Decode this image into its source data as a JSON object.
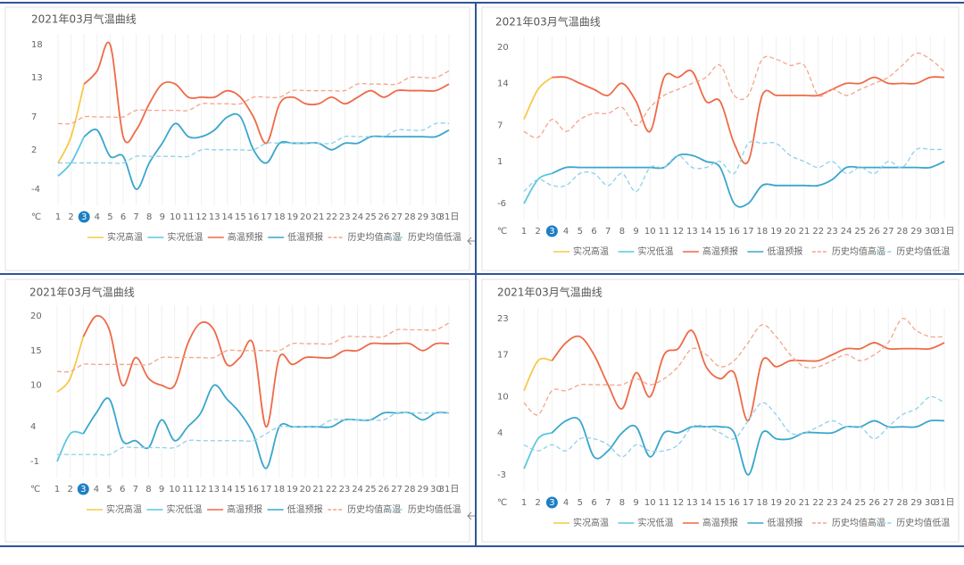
{
  "chart_data": [
    {
      "type": "line",
      "title": "2021年03月气温曲线",
      "y_unit": "℃",
      "highlight_index": 2,
      "grid": true,
      "categories": [
        "1",
        "2",
        "3",
        "4",
        "5",
        "6",
        "7",
        "8",
        "9",
        "10",
        "11",
        "12",
        "13",
        "14",
        "15",
        "16",
        "17",
        "18",
        "19",
        "20",
        "21",
        "22",
        "23",
        "24",
        "25",
        "26",
        "27",
        "28",
        "29",
        "30",
        "31日"
      ],
      "ylim": [
        -4,
        18
      ],
      "yticks": [
        18,
        13,
        7,
        2,
        -4
      ],
      "series": [
        {
          "name": "实况高温",
          "color": "#f7c94a",
          "dashed": false,
          "values": [
            0,
            4,
            12,
            null,
            null,
            null,
            null,
            null,
            null,
            null,
            null,
            null,
            null,
            null,
            null,
            null,
            null,
            null,
            null,
            null,
            null,
            null,
            null,
            null,
            null,
            null,
            null,
            null,
            null,
            null,
            null
          ]
        },
        {
          "name": "实况低温",
          "color": "#5cc8e0",
          "dashed": false,
          "values": [
            -2,
            0,
            4,
            null,
            null,
            null,
            null,
            null,
            null,
            null,
            null,
            null,
            null,
            null,
            null,
            null,
            null,
            null,
            null,
            null,
            null,
            null,
            null,
            null,
            null,
            null,
            null,
            null,
            null,
            null,
            null
          ]
        },
        {
          "name": "高温预报",
          "color": "#ee6a47",
          "dashed": false,
          "values": [
            null,
            null,
            12,
            14,
            18,
            4,
            5,
            9,
            12,
            12,
            10,
            10,
            10,
            11,
            10,
            7,
            3,
            9,
            10,
            9,
            9,
            10,
            9,
            10,
            11,
            10,
            11,
            11,
            11,
            11,
            12
          ]
        },
        {
          "name": "低温预报",
          "color": "#3aa6cc",
          "dashed": false,
          "values": [
            null,
            null,
            4,
            5,
            1,
            1,
            -4,
            0,
            3,
            6,
            4,
            4,
            5,
            7,
            7,
            2,
            0,
            3,
            3,
            3,
            3,
            2,
            3,
            3,
            4,
            4,
            4,
            4,
            4,
            4,
            5
          ]
        },
        {
          "name": "历史均值高温",
          "color": "#f4a48c",
          "dashed": true,
          "values": [
            6,
            6,
            7,
            7,
            7,
            7,
            8,
            8,
            8,
            8,
            8,
            9,
            9,
            9,
            9,
            10,
            10,
            10,
            11,
            11,
            11,
            11,
            11,
            12,
            12,
            12,
            12,
            13,
            13,
            13,
            14
          ]
        },
        {
          "name": "历史均值低温",
          "color": "#8fd0ea",
          "dashed": true,
          "values": [
            0,
            0,
            0,
            0,
            0,
            0,
            1,
            1,
            1,
            1,
            1,
            2,
            2,
            2,
            2,
            2,
            3,
            3,
            3,
            3,
            3,
            3,
            4,
            4,
            4,
            4,
            5,
            5,
            5,
            6,
            6
          ]
        }
      ]
    },
    {
      "type": "line",
      "title": "2021年03月气温曲线",
      "y_unit": "℃",
      "highlight_index": 2,
      "grid": true,
      "categories": [
        "1",
        "2",
        "3",
        "4",
        "5",
        "6",
        "7",
        "8",
        "9",
        "10",
        "11",
        "12",
        "13",
        "14",
        "15",
        "16",
        "17",
        "18",
        "19",
        "20",
        "21",
        "22",
        "23",
        "24",
        "25",
        "26",
        "27",
        "28",
        "29",
        "30",
        "31日"
      ],
      "ylim": [
        -6,
        20
      ],
      "yticks": [
        20,
        14,
        7,
        1,
        -6
      ],
      "series": [
        {
          "name": "实况高温",
          "color": "#f7c94a",
          "dashed": false,
          "values": [
            8,
            13,
            15,
            null,
            null,
            null,
            null,
            null,
            null,
            null,
            null,
            null,
            null,
            null,
            null,
            null,
            null,
            null,
            null,
            null,
            null,
            null,
            null,
            null,
            null,
            null,
            null,
            null,
            null,
            null,
            null
          ]
        },
        {
          "name": "实况低温",
          "color": "#5cc8e0",
          "dashed": false,
          "values": [
            -6,
            -2,
            -1,
            null,
            null,
            null,
            null,
            null,
            null,
            null,
            null,
            null,
            null,
            null,
            null,
            null,
            null,
            null,
            null,
            null,
            null,
            null,
            null,
            null,
            null,
            null,
            null,
            null,
            null,
            null,
            null
          ]
        },
        {
          "name": "高温预报",
          "color": "#ee6a47",
          "dashed": false,
          "values": [
            null,
            null,
            15,
            15,
            14,
            13,
            12,
            14,
            11,
            6,
            15,
            15,
            16,
            11,
            11,
            4,
            1,
            12,
            12,
            12,
            12,
            12,
            13,
            14,
            14,
            15,
            14,
            14,
            14,
            15,
            15
          ]
        },
        {
          "name": "低温预报",
          "color": "#3aa6cc",
          "dashed": false,
          "values": [
            null,
            null,
            -1,
            0,
            0,
            0,
            0,
            0,
            0,
            0,
            0,
            2,
            2,
            1,
            0,
            -6,
            -6,
            -3,
            -3,
            -3,
            -3,
            -3,
            -2,
            0,
            0,
            0,
            0,
            0,
            0,
            0,
            1
          ]
        },
        {
          "name": "历史均值高温",
          "color": "#f4a48c",
          "dashed": true,
          "values": [
            6,
            5,
            8,
            6,
            8,
            9,
            9,
            10,
            7,
            10,
            12,
            13,
            14,
            15,
            17,
            12,
            12,
            18,
            18,
            17,
            17,
            12,
            13,
            12,
            13,
            14,
            15,
            17,
            19,
            18,
            16
          ]
        },
        {
          "name": "历史均值低温",
          "color": "#8fd0ea",
          "dashed": true,
          "values": [
            -4,
            -2,
            -3,
            -3,
            -1,
            -1,
            -3,
            -1,
            -4,
            0,
            0,
            2,
            0,
            0,
            1,
            -1,
            4,
            4,
            4,
            2,
            1,
            0,
            1,
            -1,
            0,
            -1,
            1,
            0,
            3,
            3,
            3
          ]
        }
      ]
    },
    {
      "type": "line",
      "title": "2021年03月气温曲线",
      "y_unit": "℃",
      "highlight_index": 2,
      "grid": true,
      "categories": [
        "1",
        "2",
        "3",
        "4",
        "5",
        "6",
        "7",
        "8",
        "9",
        "10",
        "11",
        "12",
        "13",
        "14",
        "15",
        "16",
        "17",
        "18",
        "19",
        "20",
        "21",
        "22",
        "23",
        "24",
        "25",
        "26",
        "27",
        "28",
        "29",
        "30",
        "31日"
      ],
      "ylim": [
        -1,
        20
      ],
      "yticks": [
        20,
        15,
        10,
        4,
        -1
      ],
      "series": [
        {
          "name": "实况高温",
          "color": "#f7c94a",
          "dashed": false,
          "values": [
            9,
            11,
            17,
            null,
            null,
            null,
            null,
            null,
            null,
            null,
            null,
            null,
            null,
            null,
            null,
            null,
            null,
            null,
            null,
            null,
            null,
            null,
            null,
            null,
            null,
            null,
            null,
            null,
            null,
            null,
            null
          ]
        },
        {
          "name": "实况低温",
          "color": "#5cc8e0",
          "dashed": false,
          "values": [
            -1,
            3,
            3,
            null,
            null,
            null,
            null,
            null,
            null,
            null,
            null,
            null,
            null,
            null,
            null,
            null,
            null,
            null,
            null,
            null,
            null,
            null,
            null,
            null,
            null,
            null,
            null,
            null,
            null,
            null,
            null
          ]
        },
        {
          "name": "高温预报",
          "color": "#ee6a47",
          "dashed": false,
          "values": [
            null,
            null,
            17,
            20,
            18,
            10,
            14,
            11,
            10,
            10,
            16,
            19,
            18,
            13,
            14,
            16,
            4,
            14,
            13,
            14,
            14,
            14,
            15,
            15,
            16,
            16,
            16,
            16,
            15,
            16,
            16
          ]
        },
        {
          "name": "低温预报",
          "color": "#3aa6cc",
          "dashed": false,
          "values": [
            null,
            null,
            3,
            6,
            8,
            2,
            2,
            1,
            5,
            2,
            4,
            6,
            10,
            8,
            6,
            3,
            -2,
            4,
            4,
            4,
            4,
            4,
            5,
            5,
            5,
            6,
            6,
            6,
            5,
            6,
            6
          ]
        },
        {
          "name": "历史均值高温",
          "color": "#f4a48c",
          "dashed": true,
          "values": [
            12,
            12,
            13,
            13,
            13,
            13,
            13,
            13,
            14,
            14,
            14,
            14,
            14,
            15,
            15,
            15,
            15,
            15,
            16,
            16,
            16,
            16,
            17,
            17,
            17,
            17,
            18,
            18,
            18,
            18,
            19
          ]
        },
        {
          "name": "历史均值低温",
          "color": "#8fd0ea",
          "dashed": true,
          "values": [
            0,
            0,
            0,
            0,
            0,
            1,
            1,
            1,
            1,
            1,
            2,
            2,
            2,
            2,
            2,
            2,
            3,
            4,
            4,
            4,
            4,
            5,
            5,
            5,
            5,
            5,
            6,
            6,
            6,
            6,
            6
          ]
        }
      ]
    },
    {
      "type": "line",
      "title": "2021年03月气温曲线",
      "y_unit": "℃",
      "highlight_index": 2,
      "grid": true,
      "categories": [
        "1",
        "2",
        "3",
        "4",
        "5",
        "6",
        "7",
        "8",
        "9",
        "10",
        "11",
        "12",
        "13",
        "14",
        "15",
        "16",
        "17",
        "18",
        "19",
        "20",
        "21",
        "22",
        "23",
        "24",
        "25",
        "26",
        "27",
        "28",
        "29",
        "30",
        "31日"
      ],
      "ylim": [
        -3,
        23
      ],
      "yticks": [
        23,
        17,
        10,
        4,
        -3
      ],
      "series": [
        {
          "name": "实况高温",
          "color": "#f7c94a",
          "dashed": false,
          "values": [
            11,
            16,
            16,
            null,
            null,
            null,
            null,
            null,
            null,
            null,
            null,
            null,
            null,
            null,
            null,
            null,
            null,
            null,
            null,
            null,
            null,
            null,
            null,
            null,
            null,
            null,
            null,
            null,
            null,
            null,
            null
          ]
        },
        {
          "name": "实况低温",
          "color": "#5cc8e0",
          "dashed": false,
          "values": [
            -2,
            3,
            4,
            null,
            null,
            null,
            null,
            null,
            null,
            null,
            null,
            null,
            null,
            null,
            null,
            null,
            null,
            null,
            null,
            null,
            null,
            null,
            null,
            null,
            null,
            null,
            null,
            null,
            null,
            null,
            null
          ]
        },
        {
          "name": "高温预报",
          "color": "#ee6a47",
          "dashed": false,
          "values": [
            null,
            null,
            16,
            19,
            20,
            17,
            12,
            8,
            14,
            10,
            17,
            18,
            21,
            15,
            13,
            14,
            6,
            16,
            15,
            16,
            16,
            16,
            17,
            18,
            18,
            19,
            18,
            18,
            18,
            18,
            19
          ]
        },
        {
          "name": "低温预报",
          "color": "#3aa6cc",
          "dashed": false,
          "values": [
            null,
            null,
            4,
            6,
            6,
            0,
            1,
            4,
            5,
            0,
            4,
            4,
            5,
            5,
            5,
            4,
            -3,
            4,
            3,
            3,
            4,
            4,
            4,
            5,
            5,
            6,
            5,
            5,
            5,
            6,
            6
          ]
        },
        {
          "name": "历史均值高温",
          "color": "#f4a48c",
          "dashed": true,
          "values": [
            9,
            7,
            11,
            11,
            12,
            12,
            12,
            12,
            13,
            12,
            13,
            15,
            18,
            17,
            15,
            16,
            19,
            22,
            20,
            17,
            15,
            15,
            16,
            17,
            16,
            17,
            19,
            23,
            21,
            20,
            20
          ]
        },
        {
          "name": "历史均值低温",
          "color": "#8fd0ea",
          "dashed": true,
          "values": [
            2,
            1,
            2,
            1,
            3,
            3,
            2,
            0,
            2,
            1,
            1,
            2,
            5,
            5,
            4,
            3,
            6,
            9,
            7,
            4,
            4,
            5,
            6,
            5,
            5,
            3,
            5,
            7,
            8,
            10,
            9
          ]
        }
      ]
    }
  ]
}
